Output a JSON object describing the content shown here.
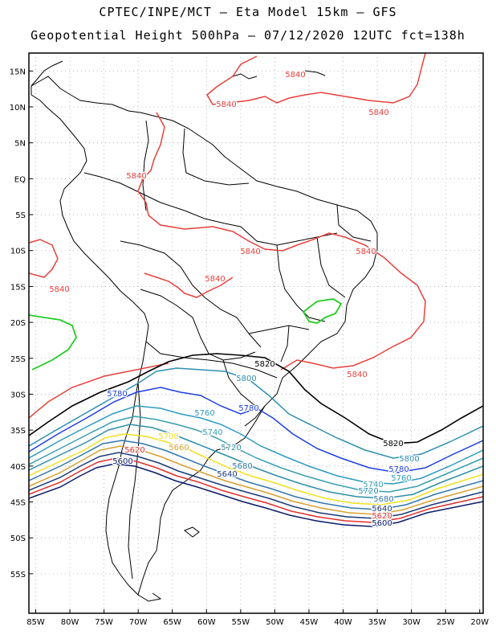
{
  "title": {
    "line1": "CPTEC/INPE/MCT –  Eta Model 15km – GFS",
    "line2": "Geopotential Height 500hPa – 07/12/2020 12UTC fct=138h"
  },
  "axes": {
    "lat_labels": [
      "15N",
      "10N",
      "5N",
      "EQ",
      "5S",
      "10S",
      "15S",
      "20S",
      "25S",
      "30S",
      "35S",
      "40S",
      "45S",
      "50S",
      "55S"
    ],
    "lon_labels": [
      "85W",
      "80W",
      "75W",
      "70W",
      "65W",
      "60W",
      "55W",
      "50W",
      "45W",
      "40W",
      "35W",
      "30W",
      "25W",
      "20W"
    ],
    "lon_values": [
      -85,
      -80,
      -75,
      -70,
      -65,
      -60,
      -55,
      -50,
      -45,
      -40,
      -35,
      -30,
      -25,
      -20
    ],
    "lat_values": [
      15,
      10,
      5,
      0,
      -5,
      -10,
      -15,
      -20,
      -25,
      -30,
      -35,
      -40,
      -45,
      -50,
      -55
    ],
    "grid": "dotted"
  },
  "colors": {
    "c5840": "#e8403c",
    "c5820": "#000000",
    "c5800": "#2f8fb3",
    "c5780": "#1f3fe0",
    "c5760": "#2e9bc4",
    "c5740": "#3a9fb0",
    "c5720": "#2d8fa8",
    "c5700": "#f0e020",
    "c5680": "#3377aa",
    "c5660": "#d8a030",
    "c5640": "#1a3a7a",
    "c5620": "#e03030",
    "c5600": "#0a1a6a",
    "green": "#22cc22",
    "land": "#000000"
  },
  "contour_labels": [
    {
      "text": "5840",
      "color": "c5840"
    },
    {
      "text": "5840",
      "color": "c5840"
    },
    {
      "text": "5840",
      "color": "c5840"
    },
    {
      "text": "5840",
      "color": "c5840"
    },
    {
      "text": "5840",
      "color": "c5840"
    },
    {
      "text": "5840",
      "color": "c5840"
    },
    {
      "text": "5840",
      "color": "c5840"
    },
    {
      "text": "5840",
      "color": "c5840"
    },
    {
      "text": "5840",
      "color": "c5840"
    },
    {
      "text": "5820",
      "color": "c5820"
    },
    {
      "text": "5820",
      "color": "c5820"
    },
    {
      "text": "5800",
      "color": "c5800"
    },
    {
      "text": "5800",
      "color": "c5800"
    },
    {
      "text": "5780",
      "color": "c5780"
    },
    {
      "text": "5780",
      "color": "c5780"
    },
    {
      "text": "5780",
      "color": "c5780"
    },
    {
      "text": "5760",
      "color": "c5760"
    },
    {
      "text": "5760",
      "color": "c5760"
    },
    {
      "text": "5740",
      "color": "c5740"
    },
    {
      "text": "5740",
      "color": "c5740"
    },
    {
      "text": "5720",
      "color": "c5720"
    },
    {
      "text": "5720",
      "color": "c5720"
    },
    {
      "text": "5700",
      "color": "c5700"
    },
    {
      "text": "5680",
      "color": "c5680"
    },
    {
      "text": "5680",
      "color": "c5680"
    },
    {
      "text": "5660",
      "color": "c5660"
    },
    {
      "text": "5640",
      "color": "c5640"
    },
    {
      "text": "5640",
      "color": "c5640"
    },
    {
      "text": "5620",
      "color": "c5620"
    },
    {
      "text": "5620",
      "color": "c5620"
    },
    {
      "text": "5600",
      "color": "c5600"
    },
    {
      "text": "5600",
      "color": "c5600"
    }
  ]
}
